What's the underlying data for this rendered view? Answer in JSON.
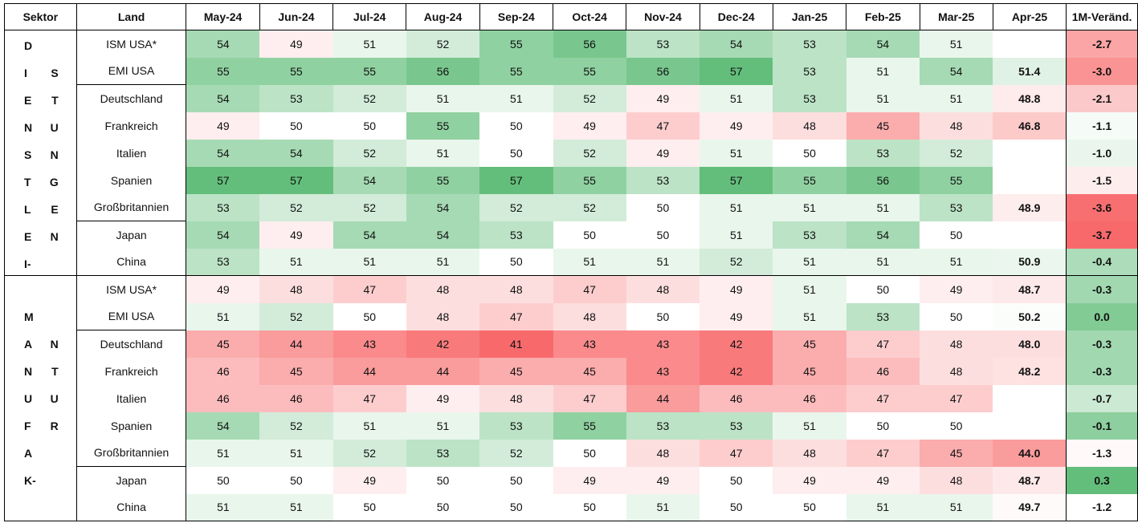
{
  "colors": {
    "high": "#63be7b",
    "mid": "#ffffff",
    "low": "#f8696b"
  },
  "chart_data": {
    "type": "heatmap",
    "columns": [
      "Sektor",
      "Land",
      "May-24",
      "Jun-24",
      "Jul-24",
      "Aug-24",
      "Sep-24",
      "Oct-24",
      "Nov-24",
      "Dec-24",
      "Jan-25",
      "Feb-25",
      "Mar-25",
      "Apr-25",
      "1M-Veränd."
    ],
    "sectors": [
      {
        "name": "DIENSTLEISTUNG",
        "lines": [
          [
            "D",
            ""
          ],
          [
            "I",
            "S"
          ],
          [
            "E",
            "T"
          ],
          [
            "N",
            "U"
          ],
          [
            "S",
            "N"
          ],
          [
            "T",
            "G"
          ],
          [
            "L",
            "E"
          ],
          [
            "E",
            "N"
          ],
          [
            "I-",
            ""
          ]
        ],
        "rows": [
          {
            "land": "ISM USA*",
            "values": [
              54,
              49,
              51,
              52,
              55,
              56,
              53,
              54,
              53,
              54,
              51,
              null
            ],
            "change": "-2.7",
            "change_num": -2.7,
            "group_start": true
          },
          {
            "land": "EMI USA",
            "values": [
              55,
              55,
              55,
              56,
              55,
              55,
              56,
              57,
              53,
              51,
              54,
              "51.4"
            ],
            "change": "-3.0",
            "change_num": -3.0
          },
          {
            "land": "Deutschland",
            "values": [
              54,
              53,
              52,
              51,
              51,
              52,
              49,
              51,
              53,
              51,
              51,
              "48.8"
            ],
            "change": "-2.1",
            "change_num": -2.1,
            "group_start": true
          },
          {
            "land": "Frankreich",
            "values": [
              49,
              50,
              50,
              55,
              50,
              49,
              47,
              49,
              48,
              45,
              48,
              "46.8"
            ],
            "change": "-1.1",
            "change_num": -1.1
          },
          {
            "land": "Italien",
            "values": [
              54,
              54,
              52,
              51,
              50,
              52,
              49,
              51,
              50,
              53,
              52,
              null
            ],
            "change": "-1.0",
            "change_num": -1.0
          },
          {
            "land": "Spanien",
            "values": [
              57,
              57,
              54,
              55,
              57,
              55,
              53,
              57,
              55,
              56,
              55,
              null
            ],
            "change": "-1.5",
            "change_num": -1.5
          },
          {
            "land": "Großbritannien",
            "values": [
              53,
              52,
              52,
              54,
              52,
              52,
              50,
              51,
              51,
              51,
              53,
              "48.9"
            ],
            "change": "-3.6",
            "change_num": -3.6
          },
          {
            "land": "Japan",
            "values": [
              54,
              49,
              54,
              54,
              53,
              50,
              50,
              51,
              53,
              54,
              50,
              null
            ],
            "change": "-3.7",
            "change_num": -3.7,
            "group_start": true
          },
          {
            "land": "China",
            "values": [
              53,
              51,
              51,
              51,
              50,
              51,
              51,
              52,
              51,
              51,
              51,
              "50.9"
            ],
            "change": "-0.4",
            "change_num": -0.4
          }
        ]
      },
      {
        "name": "MANUFAKTUR",
        "lines": [
          [
            "",
            ""
          ],
          [
            "M",
            ""
          ],
          [
            "A",
            "N"
          ],
          [
            "N",
            "T"
          ],
          [
            "U",
            "U"
          ],
          [
            "F",
            "R"
          ],
          [
            "A",
            ""
          ],
          [
            "K-",
            ""
          ],
          [
            "",
            ""
          ]
        ],
        "rows": [
          {
            "land": "ISM USA*",
            "values": [
              49,
              48,
              47,
              48,
              48,
              47,
              48,
              49,
              51,
              50,
              49,
              "48.7"
            ],
            "change": "-0.3",
            "change_num": -0.3,
            "group_start": true
          },
          {
            "land": "EMI USA",
            "values": [
              51,
              52,
              50,
              48,
              47,
              48,
              50,
              49,
              51,
              53,
              50,
              "50.2"
            ],
            "change": "0.0",
            "change_num": 0.0
          },
          {
            "land": "Deutschland",
            "values": [
              45,
              44,
              43,
              42,
              41,
              43,
              43,
              42,
              45,
              47,
              48,
              "48.0"
            ],
            "change": "-0.3",
            "change_num": -0.3,
            "group_start": true
          },
          {
            "land": "Frankreich",
            "values": [
              46,
              45,
              44,
              44,
              45,
              45,
              43,
              42,
              45,
              46,
              48,
              "48.2"
            ],
            "change": "-0.3",
            "change_num": -0.3
          },
          {
            "land": "Italien",
            "values": [
              46,
              46,
              47,
              49,
              48,
              47,
              44,
              46,
              46,
              47,
              47,
              null
            ],
            "change": "-0.7",
            "change_num": -0.7
          },
          {
            "land": "Spanien",
            "values": [
              54,
              52,
              51,
              51,
              53,
              55,
              53,
              53,
              51,
              50,
              50,
              null
            ],
            "change": "-0.1",
            "change_num": -0.1
          },
          {
            "land": "Großbritannien",
            "values": [
              51,
              51,
              52,
              53,
              52,
              50,
              48,
              47,
              48,
              47,
              45,
              "44.0"
            ],
            "change": "-1.3",
            "change_num": -1.3
          },
          {
            "land": "Japan",
            "values": [
              50,
              50,
              49,
              50,
              50,
              49,
              49,
              50,
              49,
              49,
              48,
              "48.7"
            ],
            "change": "0.3",
            "change_num": 0.3,
            "group_start": true
          },
          {
            "land": "China",
            "values": [
              51,
              51,
              50,
              50,
              50,
              50,
              51,
              50,
              50,
              51,
              51,
              "49.7"
            ],
            "change": "-1.2",
            "change_num": -1.2
          }
        ]
      }
    ],
    "value_scale": {
      "min": 41,
      "mid": 50,
      "max": 57
    },
    "change_scale": {
      "min": -3.7,
      "mid": -1.2,
      "max": 0.3
    }
  }
}
